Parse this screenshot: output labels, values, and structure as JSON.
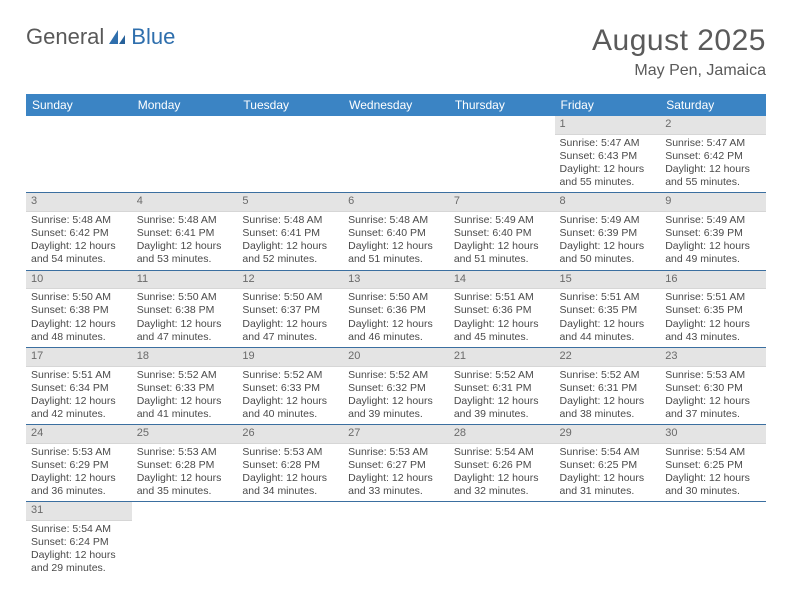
{
  "logo": {
    "text1": "General",
    "text2": "Blue"
  },
  "title": "August 2025",
  "location": "May Pen, Jamaica",
  "header_bg": "#3b84c4",
  "weekdays": [
    "Sunday",
    "Monday",
    "Tuesday",
    "Wednesday",
    "Thursday",
    "Friday",
    "Saturday"
  ],
  "weeks": [
    [
      null,
      null,
      null,
      null,
      null,
      {
        "n": "1",
        "sr": "Sunrise: 5:47 AM",
        "ss": "Sunset: 6:43 PM",
        "dl": "Daylight: 12 hours and 55 minutes."
      },
      {
        "n": "2",
        "sr": "Sunrise: 5:47 AM",
        "ss": "Sunset: 6:42 PM",
        "dl": "Daylight: 12 hours and 55 minutes."
      }
    ],
    [
      {
        "n": "3",
        "sr": "Sunrise: 5:48 AM",
        "ss": "Sunset: 6:42 PM",
        "dl": "Daylight: 12 hours and 54 minutes."
      },
      {
        "n": "4",
        "sr": "Sunrise: 5:48 AM",
        "ss": "Sunset: 6:41 PM",
        "dl": "Daylight: 12 hours and 53 minutes."
      },
      {
        "n": "5",
        "sr": "Sunrise: 5:48 AM",
        "ss": "Sunset: 6:41 PM",
        "dl": "Daylight: 12 hours and 52 minutes."
      },
      {
        "n": "6",
        "sr": "Sunrise: 5:48 AM",
        "ss": "Sunset: 6:40 PM",
        "dl": "Daylight: 12 hours and 51 minutes."
      },
      {
        "n": "7",
        "sr": "Sunrise: 5:49 AM",
        "ss": "Sunset: 6:40 PM",
        "dl": "Daylight: 12 hours and 51 minutes."
      },
      {
        "n": "8",
        "sr": "Sunrise: 5:49 AM",
        "ss": "Sunset: 6:39 PM",
        "dl": "Daylight: 12 hours and 50 minutes."
      },
      {
        "n": "9",
        "sr": "Sunrise: 5:49 AM",
        "ss": "Sunset: 6:39 PM",
        "dl": "Daylight: 12 hours and 49 minutes."
      }
    ],
    [
      {
        "n": "10",
        "sr": "Sunrise: 5:50 AM",
        "ss": "Sunset: 6:38 PM",
        "dl": "Daylight: 12 hours and 48 minutes."
      },
      {
        "n": "11",
        "sr": "Sunrise: 5:50 AM",
        "ss": "Sunset: 6:38 PM",
        "dl": "Daylight: 12 hours and 47 minutes."
      },
      {
        "n": "12",
        "sr": "Sunrise: 5:50 AM",
        "ss": "Sunset: 6:37 PM",
        "dl": "Daylight: 12 hours and 47 minutes."
      },
      {
        "n": "13",
        "sr": "Sunrise: 5:50 AM",
        "ss": "Sunset: 6:36 PM",
        "dl": "Daylight: 12 hours and 46 minutes."
      },
      {
        "n": "14",
        "sr": "Sunrise: 5:51 AM",
        "ss": "Sunset: 6:36 PM",
        "dl": "Daylight: 12 hours and 45 minutes."
      },
      {
        "n": "15",
        "sr": "Sunrise: 5:51 AM",
        "ss": "Sunset: 6:35 PM",
        "dl": "Daylight: 12 hours and 44 minutes."
      },
      {
        "n": "16",
        "sr": "Sunrise: 5:51 AM",
        "ss": "Sunset: 6:35 PM",
        "dl": "Daylight: 12 hours and 43 minutes."
      }
    ],
    [
      {
        "n": "17",
        "sr": "Sunrise: 5:51 AM",
        "ss": "Sunset: 6:34 PM",
        "dl": "Daylight: 12 hours and 42 minutes."
      },
      {
        "n": "18",
        "sr": "Sunrise: 5:52 AM",
        "ss": "Sunset: 6:33 PM",
        "dl": "Daylight: 12 hours and 41 minutes."
      },
      {
        "n": "19",
        "sr": "Sunrise: 5:52 AM",
        "ss": "Sunset: 6:33 PM",
        "dl": "Daylight: 12 hours and 40 minutes."
      },
      {
        "n": "20",
        "sr": "Sunrise: 5:52 AM",
        "ss": "Sunset: 6:32 PM",
        "dl": "Daylight: 12 hours and 39 minutes."
      },
      {
        "n": "21",
        "sr": "Sunrise: 5:52 AM",
        "ss": "Sunset: 6:31 PM",
        "dl": "Daylight: 12 hours and 39 minutes."
      },
      {
        "n": "22",
        "sr": "Sunrise: 5:52 AM",
        "ss": "Sunset: 6:31 PM",
        "dl": "Daylight: 12 hours and 38 minutes."
      },
      {
        "n": "23",
        "sr": "Sunrise: 5:53 AM",
        "ss": "Sunset: 6:30 PM",
        "dl": "Daylight: 12 hours and 37 minutes."
      }
    ],
    [
      {
        "n": "24",
        "sr": "Sunrise: 5:53 AM",
        "ss": "Sunset: 6:29 PM",
        "dl": "Daylight: 12 hours and 36 minutes."
      },
      {
        "n": "25",
        "sr": "Sunrise: 5:53 AM",
        "ss": "Sunset: 6:28 PM",
        "dl": "Daylight: 12 hours and 35 minutes."
      },
      {
        "n": "26",
        "sr": "Sunrise: 5:53 AM",
        "ss": "Sunset: 6:28 PM",
        "dl": "Daylight: 12 hours and 34 minutes."
      },
      {
        "n": "27",
        "sr": "Sunrise: 5:53 AM",
        "ss": "Sunset: 6:27 PM",
        "dl": "Daylight: 12 hours and 33 minutes."
      },
      {
        "n": "28",
        "sr": "Sunrise: 5:54 AM",
        "ss": "Sunset: 6:26 PM",
        "dl": "Daylight: 12 hours and 32 minutes."
      },
      {
        "n": "29",
        "sr": "Sunrise: 5:54 AM",
        "ss": "Sunset: 6:25 PM",
        "dl": "Daylight: 12 hours and 31 minutes."
      },
      {
        "n": "30",
        "sr": "Sunrise: 5:54 AM",
        "ss": "Sunset: 6:25 PM",
        "dl": "Daylight: 12 hours and 30 minutes."
      }
    ],
    [
      {
        "n": "31",
        "sr": "Sunrise: 5:54 AM",
        "ss": "Sunset: 6:24 PM",
        "dl": "Daylight: 12 hours and 29 minutes."
      },
      null,
      null,
      null,
      null,
      null,
      null
    ]
  ]
}
